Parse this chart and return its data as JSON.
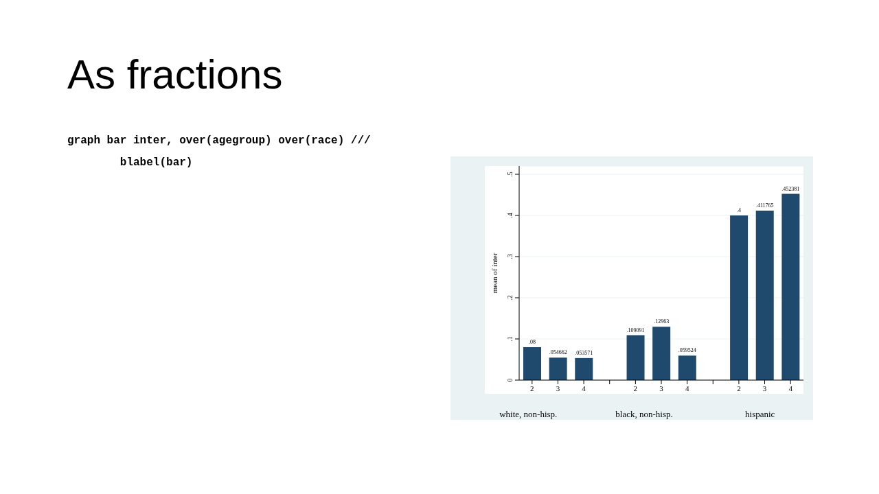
{
  "chart_data": {
    "type": "bar",
    "title": "As fractions",
    "annotations": [
      "graph bar inter, over(agegroup) over(race) ///",
      "        blabel(bar)",
      "white, non-hisp.",
      "black, non-hisp.",
      "hispanic"
    ],
    "ylabel": "mean of inter",
    "categories": [
      "2",
      "3",
      "4",
      null,
      "2",
      "3",
      "4",
      null,
      "2",
      "3",
      "4"
    ],
    "values": [
      0.08,
      0.054662,
      0.053571,
      null,
      0.109091,
      0.12963,
      0.059524,
      null,
      0.4,
      0.411765,
      0.452381
    ],
    "color": "#1f4a6e",
    "ylim": [
      0,
      0.52
    ],
    "yticks": [
      0,
      {
        "value": 0.1,
        "label": ".1"
      },
      {
        "value": 0.2,
        "label": ".2"
      },
      {
        "value": 0.3,
        "label": ".3"
      },
      {
        "value": 0.4,
        "label": ".4"
      },
      {
        "value": 0.5,
        "label": ".5"
      }
    ],
    "value_labels": [
      ".08",
      ".054662",
      ".053571",
      null,
      ".109091",
      ".12963",
      ".059524",
      null,
      ".4",
      ".411765",
      ".452381"
    ],
    "grid": "y"
  }
}
